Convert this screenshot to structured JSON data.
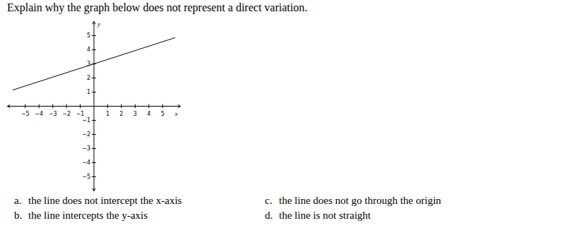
{
  "question": "Explain why the graph below does not represent a direct variation.",
  "chart_data": {
    "type": "line",
    "x": [
      -5.9,
      5.9
    ],
    "values": [
      1.15,
      4.85
    ],
    "color": "#000000",
    "x_label": "x",
    "y_label": "y",
    "xlim": [
      -6.3,
      6.3
    ],
    "ylim": [
      -6,
      6
    ],
    "xticks": [
      -5,
      -4,
      -3,
      -2,
      -1,
      1,
      2,
      3,
      4,
      5
    ],
    "yticks": [
      -5,
      -4,
      -3,
      -2,
      -1,
      1,
      2,
      3,
      4,
      5
    ],
    "grid": false
  },
  "choices": [
    {
      "letter": "a.",
      "text": "the line does not intercept the x-axis"
    },
    {
      "letter": "b.",
      "text": "the line intercepts the y-axis"
    },
    {
      "letter": "c.",
      "text": "the line does not go through the origin"
    },
    {
      "letter": "d.",
      "text": "the line is not straight"
    }
  ]
}
